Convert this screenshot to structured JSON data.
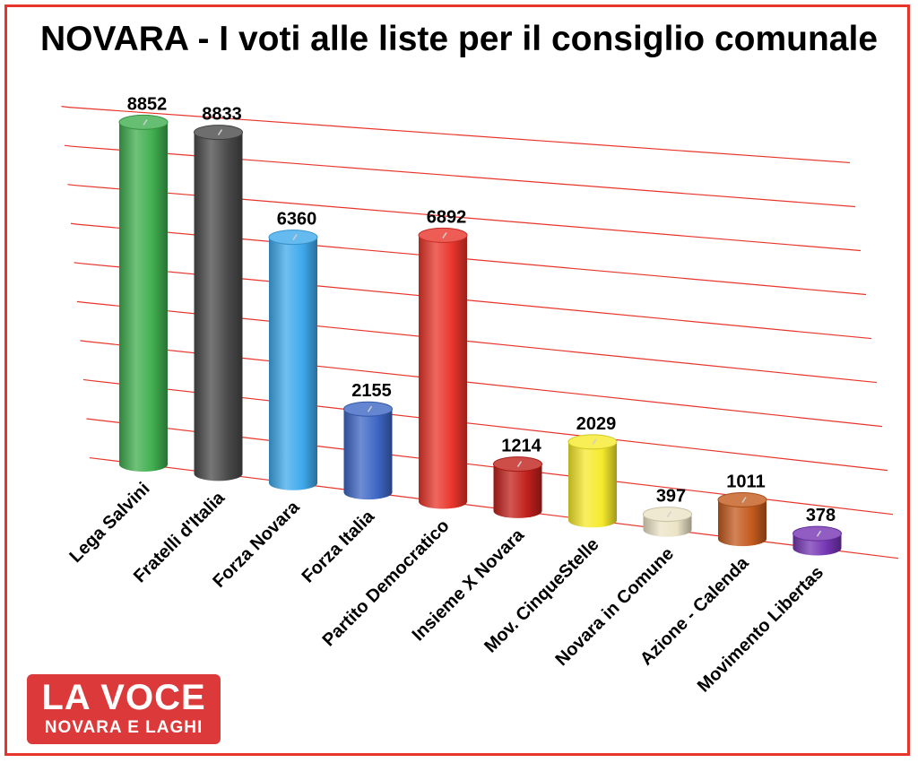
{
  "chart_data": {
    "type": "bar",
    "title": "NOVARA - I voti alle liste per il consiglio comunale",
    "categories": [
      "Lega Salvini",
      "Fratelli d'Italia",
      "Forza Novara",
      "Forza Italia",
      "Partito Democratico",
      "Insieme X Novara",
      "Mov. CinqueStelle",
      "Novara in Comune",
      "Azione - Calenda",
      "Movimento Libertas"
    ],
    "values": [
      8852,
      8833,
      6360,
      2155,
      6892,
      1214,
      2029,
      397,
      1011,
      378
    ],
    "colors": [
      "#3fae4e",
      "#4a4a4a",
      "#3fa9ec",
      "#3d66c4",
      "#e8352b",
      "#c1201b",
      "#f6ea2c",
      "#ece3c6",
      "#c35a1d",
      "#7535b3"
    ],
    "ylim": [
      0,
      9000
    ],
    "grid": true,
    "legend": "none"
  },
  "logo": {
    "line1": "LA VOCE",
    "line2": "NOVARA E LAGHI"
  }
}
